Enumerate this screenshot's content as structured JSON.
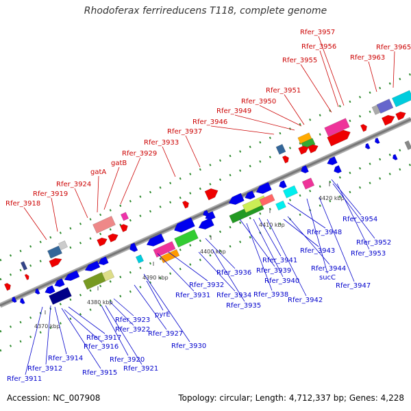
{
  "title": "Rhodoferax ferrireducens T118, complete genome",
  "footer": {
    "accession": "Accession: NC_007908",
    "summary": "Topology: circular; Length: 4,712,337 bp; Genes: 4,228"
  },
  "ticks": [
    "4370 kbp",
    "4380 kbp",
    "4390 kbp",
    "4400 kbp",
    "4410 kbp",
    "4420 kbp"
  ],
  "top_labels": [
    "Rfer_3918",
    "Rfer_3919",
    "Rfer_3924",
    "gatA",
    "gatB",
    "Rfer_3929",
    "Rfer_3933",
    "Rfer_3937",
    "Rfer_3946",
    "Rfer_3949",
    "Rfer_3950",
    "Rfer_3951",
    "Rfer_3955",
    "Rfer_3956",
    "Rfer_3957",
    "Rfer_3963",
    "Rfer_3965"
  ],
  "bottom_labels": [
    "Rfer_3911",
    "Rfer_3912",
    "Rfer_3914",
    "Rfer_3915",
    "Rfer_3916",
    "Rfer_3917",
    "Rfer_3920",
    "Rfer_3921",
    "Rfer_3922",
    "Rfer_3923",
    "Rfer_3927",
    "pyrE",
    "Rfer_3930",
    "Rfer_3931",
    "Rfer_3932",
    "Rfer_3934",
    "Rfer_3935",
    "Rfer_3936",
    "Rfer_3938",
    "Rfer_3939",
    "Rfer_3940",
    "Rfer_3941",
    "Rfer_3942",
    "Rfer_3943",
    "Rfer_3944",
    "sucC",
    "Rfer_3947",
    "Rfer_3948",
    "Rfer_3952",
    "Rfer_3953",
    "Rfer_3954"
  ],
  "colors": {
    "top_label": "#cc0000",
    "bottom_label": "#0000cc",
    "forward_gene": "#ee0000",
    "reverse_gene": "#0000ee",
    "backbone": "#999999",
    "ticks": "#2e8b2e"
  }
}
